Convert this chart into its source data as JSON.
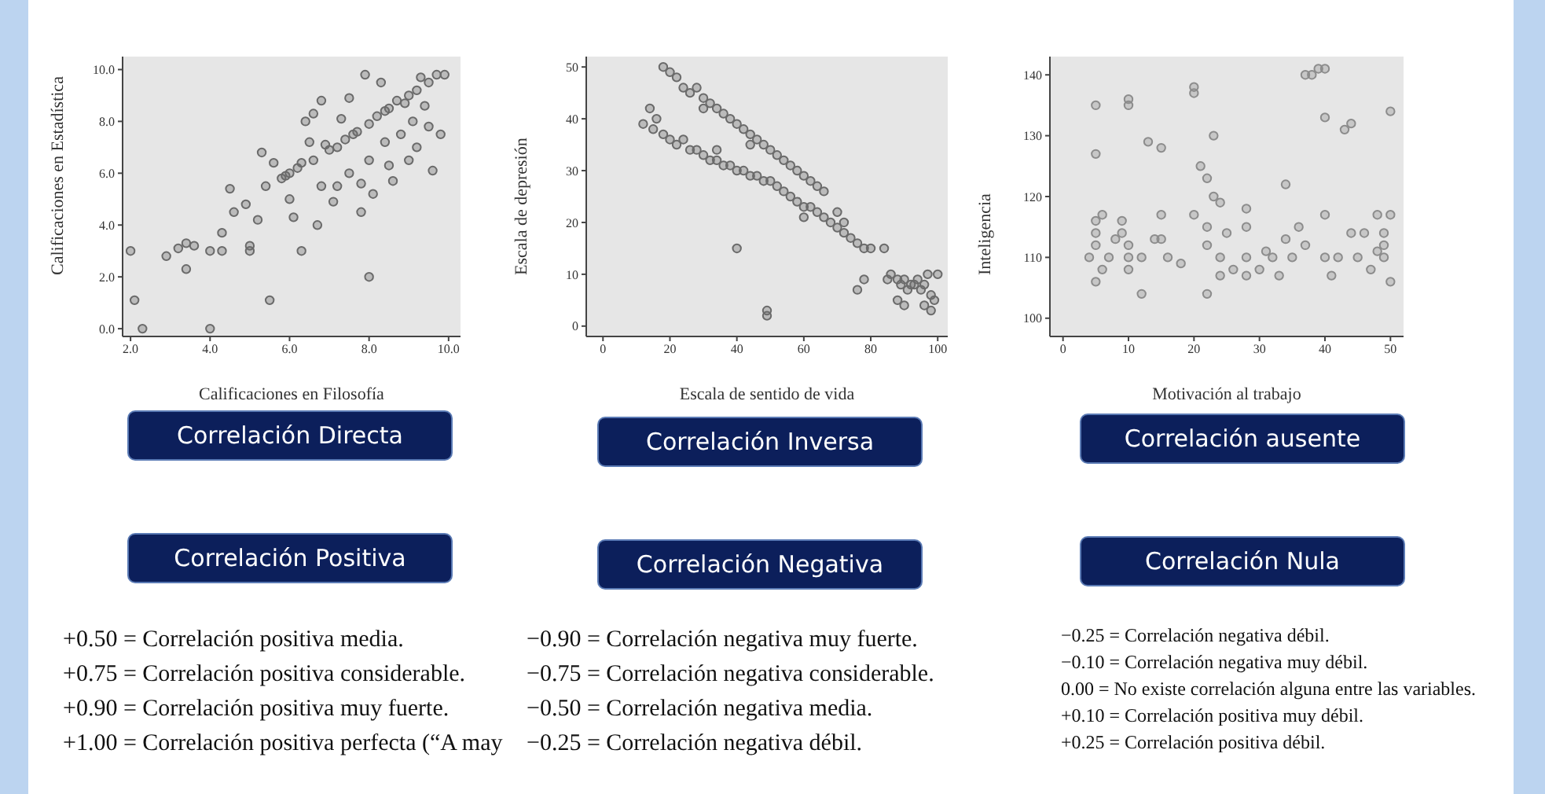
{
  "chart_data": [
    {
      "type": "scatter",
      "xlabel": "Calificaciones en Filosofía",
      "ylabel": "Calificaciones en Estadística",
      "xlim": [
        1.8,
        10.3
      ],
      "ylim": [
        -0.3,
        10.5
      ],
      "xticks": [
        {
          "value": 2,
          "label": "2.0"
        },
        {
          "value": 4,
          "label": "4.0"
        },
        {
          "value": 6,
          "label": "6.0"
        },
        {
          "value": 8,
          "label": "8.0"
        },
        {
          "value": 10,
          "label": "10.0"
        }
      ],
      "yticks": [
        {
          "value": 0,
          "label": "0.0"
        },
        {
          "value": 2,
          "label": "2.0"
        },
        {
          "value": 4,
          "label": "4.0"
        },
        {
          "value": 6,
          "label": "6.0"
        },
        {
          "value": 8,
          "label": "8.0"
        },
        {
          "value": 10,
          "label": "10.0"
        }
      ],
      "marker": "circle",
      "grid": false,
      "legend": false,
      "series": [
        {
          "color": "#6a6a6a",
          "x": [
            2.0,
            2.1,
            2.3,
            2.9,
            3.2,
            3.4,
            3.4,
            3.6,
            4.0,
            4.0,
            4.3,
            4.3,
            4.5,
            5.0,
            5.0,
            5.5,
            6.3,
            8.0,
            4.6,
            4.9,
            5.2,
            5.4,
            5.6,
            5.3,
            5.8,
            6.0,
            6.0,
            6.1,
            6.3,
            6.4,
            6.5,
            6.6,
            6.7,
            6.8,
            6.8,
            7.0,
            7.2,
            7.2,
            7.4,
            7.5,
            7.5,
            7.7,
            7.8,
            7.8,
            7.9,
            8.0,
            8.0,
            8.1,
            8.2,
            8.3,
            8.4,
            8.5,
            8.5,
            8.6,
            8.7,
            8.8,
            9.0,
            9.0,
            9.1,
            9.2,
            9.3,
            9.4,
            9.5,
            9.5,
            9.6,
            9.7,
            9.8,
            9.9,
            7.3,
            6.9,
            6.2,
            5.9,
            8.9,
            7.6,
            8.4,
            9.2,
            6.6,
            7.1
          ],
          "values": [
            3.0,
            1.1,
            0,
            2.8,
            3.1,
            3.3,
            2.3,
            3.2,
            3.0,
            0,
            3.0,
            3.7,
            5.4,
            3.0,
            3.2,
            1.1,
            3.0,
            2.0,
            4.5,
            4.8,
            4.2,
            5.5,
            6.4,
            6.8,
            5.8,
            6.0,
            5.0,
            4.3,
            6.4,
            8.0,
            7.2,
            6.5,
            4.0,
            5.5,
            8.8,
            6.9,
            7.0,
            5.5,
            7.3,
            6.0,
            8.9,
            7.6,
            4.5,
            5.6,
            9.8,
            7.9,
            6.5,
            5.2,
            8.2,
            9.5,
            7.2,
            8.5,
            6.3,
            5.7,
            8.8,
            7.5,
            9.0,
            6.5,
            8.0,
            9.2,
            9.7,
            8.6,
            9.5,
            7.8,
            6.1,
            9.8,
            7.5,
            9.8,
            8.1,
            7.1,
            6.2,
            5.9,
            8.7,
            7.5,
            8.4,
            7.0,
            8.3,
            4.9
          ]
        }
      ],
      "annotations": [
        "Correlación Directa",
        "Correlación Positiva",
        "+0.50 = Correlación positiva media.",
        "+0.75 = Correlación positiva considerable.",
        "+0.90 = Correlación positiva muy fuerte.",
        "+1.00 = Correlación positiva perfecta (“A may"
      ]
    },
    {
      "type": "scatter",
      "xlabel": "Escala de sentido de vida",
      "ylabel": "Escala de depresión",
      "xlim": [
        -5,
        103
      ],
      "ylim": [
        -2,
        52
      ],
      "xticks": [
        0,
        20,
        40,
        60,
        80,
        100
      ],
      "yticks": [
        0,
        10,
        20,
        30,
        40,
        50
      ],
      "marker": "circle",
      "grid": false,
      "legend": false,
      "series": [
        {
          "color": "#6a6a6a",
          "x": [
            18,
            20,
            22,
            24,
            26,
            28,
            30,
            32,
            34,
            36,
            38,
            40,
            42,
            44,
            46,
            48,
            50,
            52,
            54,
            56,
            58,
            60,
            62,
            64,
            66,
            12,
            14,
            15,
            16,
            18,
            20,
            22,
            24,
            26,
            28,
            30,
            32,
            34,
            36,
            38,
            40,
            42,
            44,
            46,
            48,
            50,
            52,
            54,
            56,
            58,
            60,
            62,
            64,
            66,
            68,
            70,
            72,
            74,
            76,
            78,
            80,
            84,
            85,
            86,
            88,
            89,
            90,
            91,
            92,
            93,
            94,
            95,
            96,
            97,
            98,
            99,
            100,
            88,
            90,
            96,
            98,
            78,
            76,
            40,
            49,
            49,
            60,
            70,
            72,
            34,
            30,
            44
          ],
          "values": [
            50,
            49,
            48,
            46,
            45,
            46,
            44,
            43,
            42,
            41,
            40,
            39,
            38,
            37,
            36,
            35,
            34,
            33,
            32,
            31,
            30,
            29,
            28,
            27,
            26,
            39,
            42,
            38,
            40,
            37,
            36,
            35,
            36,
            34,
            34,
            33,
            32,
            32,
            31,
            31,
            30,
            30,
            29,
            29,
            28,
            28,
            27,
            26,
            25,
            24,
            23,
            23,
            22,
            21,
            20,
            19,
            18,
            17,
            16,
            15,
            15,
            15,
            9,
            10,
            9,
            8,
            9,
            7,
            8,
            8,
            9,
            7,
            8,
            10,
            6,
            5,
            10,
            5,
            4,
            4,
            3,
            9,
            7,
            15,
            3,
            2,
            21,
            22,
            20,
            34,
            42,
            35
          ]
        }
      ],
      "annotations": [
        "Correlación Inversa",
        "Correlación Negativa",
        "−0.90 = Correlación negativa muy fuerte.",
        "−0.75 = Correlación negativa considerable.",
        "−0.50 = Correlación negativa media.",
        "−0.25 = Correlación negativa débil."
      ]
    },
    {
      "type": "scatter",
      "xlabel": "Motivación al trabajo",
      "ylabel": "Inteligencia",
      "xlim": [
        -2,
        52
      ],
      "ylim": [
        97,
        143
      ],
      "xticks": [
        0,
        10,
        20,
        30,
        40,
        50
      ],
      "yticks": [
        100,
        110,
        120,
        130,
        140
      ],
      "marker": "circle",
      "grid": false,
      "legend": false,
      "series": [
        {
          "color": "#8c8c8c",
          "x": [
            5,
            5,
            6,
            5,
            5,
            5,
            4,
            5,
            6,
            7,
            8,
            9,
            9,
            10,
            10,
            10,
            10,
            10,
            12,
            12,
            13,
            15,
            15,
            15,
            14,
            16,
            18,
            20,
            20,
            20,
            21,
            22,
            22,
            22,
            22,
            23,
            23,
            24,
            24,
            24,
            25,
            26,
            28,
            28,
            28,
            28,
            30,
            31,
            32,
            33,
            34,
            34,
            35,
            36,
            37,
            37,
            38,
            39,
            40,
            40,
            40,
            40,
            41,
            42,
            43,
            44,
            44,
            45,
            46,
            47,
            48,
            49,
            49,
            50,
            50,
            50,
            48,
            49
          ],
          "values": [
            135,
            127,
            117,
            116,
            114,
            112,
            110,
            106,
            108,
            110,
            113,
            116,
            114,
            112,
            110,
            108,
            136,
            135,
            110,
            104,
            129,
            128,
            117,
            113,
            113,
            110,
            109,
            117,
            138,
            137,
            125,
            123,
            104,
            112,
            115,
            120,
            130,
            119,
            110,
            107,
            114,
            108,
            118,
            115,
            110,
            107,
            108,
            111,
            110,
            107,
            122,
            113,
            110,
            115,
            112,
            140,
            140,
            141,
            141,
            133,
            110,
            117,
            107,
            110,
            131,
            132,
            114,
            110,
            114,
            108,
            117,
            112,
            110,
            134,
            117,
            106,
            111,
            114
          ]
        }
      ],
      "annotations": [
        "Correlación ausente",
        "Correlación Nula",
        "−0.25 = Correlación negativa débil.",
        "−0.10 = Correlación negativa muy débil.",
        "0.00 = No existe correlación alguna entre las variables.",
        "+0.10 = Correlación positiva muy débil.",
        "+0.25 = Correlación positiva débil."
      ]
    }
  ]
}
